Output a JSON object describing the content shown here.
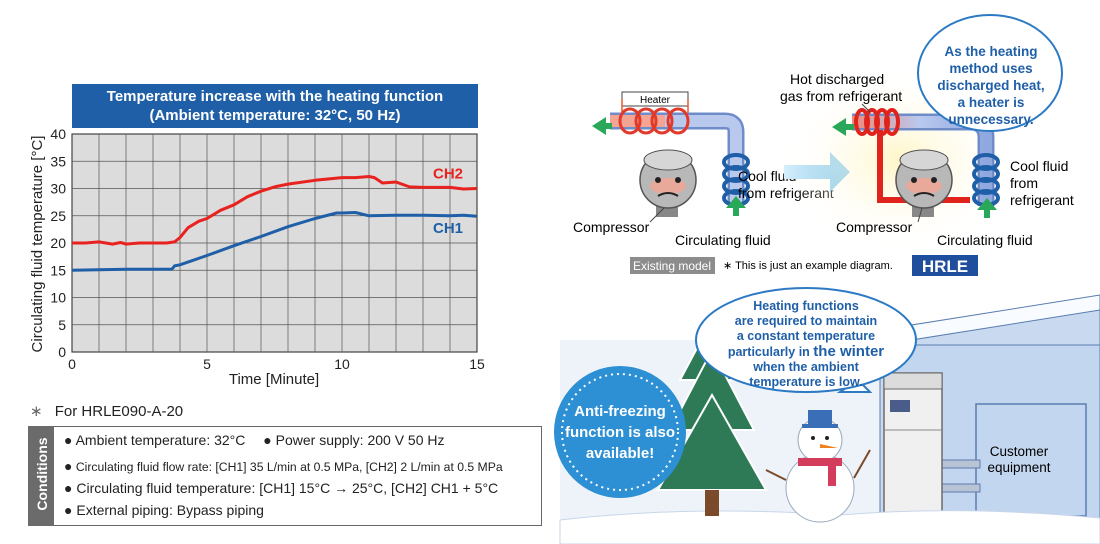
{
  "chart_data": {
    "type": "line",
    "title": "Temperature increase with the heating function",
    "subtitle": "(Ambient temperature: 32°C, 50 Hz)",
    "xlabel": "Time [Minute]",
    "ylabel": "Circulating fluid temperature [°C]",
    "xlim": [
      0,
      15
    ],
    "ylim": [
      0,
      40
    ],
    "xticks": [
      "0",
      "5",
      "10",
      "15"
    ],
    "yticks": [
      "0",
      "5",
      "10",
      "15",
      "20",
      "25",
      "30",
      "35",
      "40"
    ],
    "grid": true,
    "series": [
      {
        "name": "CH2",
        "color": "#e8221f",
        "x": [
          0,
          0.5,
          1,
          1.5,
          1.8,
          2,
          2.5,
          3,
          3.5,
          3.8,
          4,
          4.3,
          4.7,
          5,
          5.5,
          6,
          6.5,
          7,
          7.5,
          8,
          9,
          10,
          10.5,
          11,
          11.2,
          11.5,
          12,
          12.5,
          13,
          14,
          14.5,
          15
        ],
        "y": [
          20,
          20,
          20.2,
          19.8,
          20.1,
          19.8,
          20,
          20,
          20,
          20.2,
          21,
          22.8,
          24,
          24.5,
          26,
          27,
          28.5,
          29.5,
          30.3,
          30.8,
          31.5,
          32,
          32,
          32.2,
          32,
          31,
          31.2,
          30.3,
          30.2,
          30.2,
          29.9,
          30
        ]
      },
      {
        "name": "CH1",
        "color": "#1f5fa8",
        "x": [
          0,
          1,
          2,
          3,
          3.7,
          3.8,
          4,
          5,
          6,
          7,
          8,
          9,
          9.8,
          10,
          10.5,
          11,
          12,
          13,
          14,
          14.5,
          15
        ],
        "y": [
          15,
          15.1,
          15.2,
          15.2,
          15.2,
          15.8,
          16,
          17.7,
          19.5,
          21.2,
          23,
          24.5,
          25.5,
          25.5,
          25.6,
          25,
          25.1,
          25.1,
          25,
          25.1,
          24.9
        ]
      }
    ]
  },
  "note": "For HRLE090-A-20",
  "note_mark": "∗",
  "conditions": {
    "label": "Conditions",
    "ambient": "Ambient temperature: 32°C",
    "power": "Power supply: 200 V 50 Hz",
    "flow": "Circulating fluid flow rate: [CH1] 35 L/min at 0.5 MPa, [CH2] 2 L/min at 0.5 MPa",
    "fluid_temp": "Circulating fluid temperature: [CH1] 15°C → 25°C, [CH2] CH1 + 5°C",
    "piping": "External piping: Bypass piping"
  },
  "diagram": {
    "heater": "Heater",
    "compressor": "Compressor",
    "cool_fluid_1": "Cool fluid",
    "cool_fluid_2": "from refrigerant",
    "circulating_fluid": "Circulating fluid",
    "existing_model": "Existing model",
    "example_note": "∗ This is just an example diagram.",
    "hrle_badge": "HRLE",
    "hot_gas_1": "Hot discharged",
    "hot_gas_2": "gas from refrigerant",
    "cool_right_1": "Cool fluid",
    "cool_right_2": "from",
    "cool_right_3": "refrigerant",
    "bubble_top": [
      "As the heating",
      "method uses",
      "discharged heat,",
      "a heater is",
      "unnecessary."
    ],
    "bubble_winter_1": "Heating functions",
    "bubble_winter_2": "are required to maintain",
    "bubble_winter_3": "a constant temperature",
    "bubble_winter_4a": "particularly in ",
    "bubble_winter_4b": "the winter",
    "bubble_winter_5": "when the ambient",
    "bubble_winter_6": "temperature is low.",
    "anti_freeze": [
      "Anti-freezing",
      "function is also",
      "available!"
    ],
    "customer_1": "Customer",
    "customer_2": "equipment"
  }
}
